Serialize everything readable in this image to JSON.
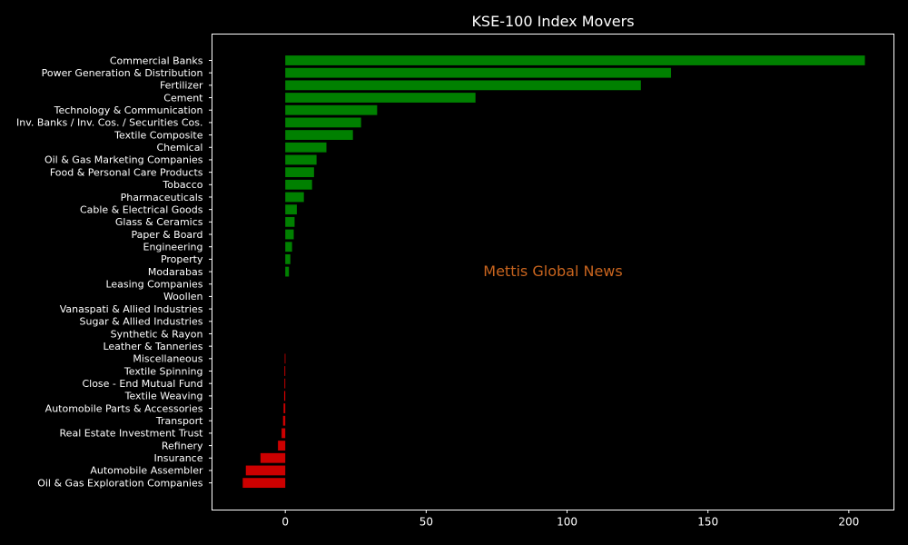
{
  "chart_data": {
    "type": "bar",
    "orientation": "horizontal",
    "title": "KSE-100 Index Movers",
    "xlabel": "",
    "ylabel": "",
    "xlim": [
      -26,
      216
    ],
    "xticks": [
      0,
      50,
      100,
      150,
      200
    ],
    "grid": false,
    "watermark": "Mettis Global News",
    "colors": {
      "background": "#000000",
      "positive": "#008000",
      "negative": "#cc0000",
      "text": "#ffffff",
      "axis": "#ffffff",
      "watermark": "#c8641e"
    },
    "categories": [
      "Commercial Banks",
      "Power Generation & Distribution",
      "Fertilizer",
      "Cement",
      "Technology & Communication",
      "Inv. Banks / Inv. Cos. / Securities Cos.",
      "Textile Composite",
      "Chemical",
      "Oil & Gas Marketing Companies",
      "Food & Personal Care Products",
      "Tobacco",
      "Pharmaceuticals",
      "Cable & Electrical Goods",
      "Glass & Ceramics",
      "Paper & Board",
      "Engineering",
      "Property",
      "Modarabas",
      "Leasing Companies",
      "Woollen",
      "Vanaspati & Allied Industries",
      "Sugar & Allied Industries",
      "Synthetic & Rayon",
      "Leather & Tanneries",
      "Miscellaneous",
      "Textile Spinning",
      "Close - End Mutual Fund",
      "Textile Weaving",
      "Automobile Parts & Accessories",
      "Transport",
      "Real Estate Investment Trust",
      "Refinery",
      "Insurance",
      "Automobile Assembler",
      "Oil & Gas Exploration Companies"
    ],
    "values": [
      205.7,
      136.9,
      126.2,
      67.5,
      32.6,
      26.9,
      24.0,
      14.6,
      11.1,
      10.2,
      9.5,
      6.6,
      4.1,
      3.3,
      3.0,
      2.4,
      1.8,
      1.3,
      0,
      0,
      0,
      0,
      0,
      0,
      -0.2,
      -0.3,
      -0.3,
      -0.4,
      -0.6,
      -0.8,
      -1.3,
      -2.6,
      -8.8,
      -14.0,
      -15.1
    ]
  }
}
